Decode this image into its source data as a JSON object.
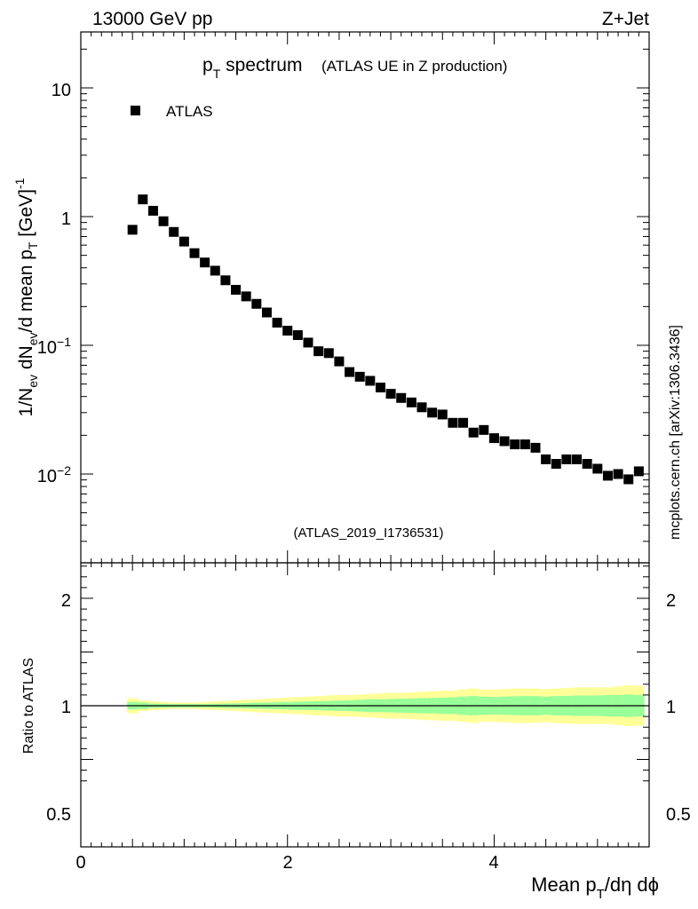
{
  "header": {
    "energy_label": "13000 GeV pp",
    "process_label": "Z+Jet"
  },
  "side_label": "mcplots.cern.ch [arXiv:1306.3436]",
  "analysis_label": "(ATLAS_2019_I1736531)",
  "colors": {
    "data_marker": "#000000",
    "band_outer": "#ffff99",
    "band_inner": "#99ff99",
    "analysis_label": "#999999",
    "frame": "#000000"
  },
  "chart_data": [
    {
      "type": "scatter",
      "title": {
        "main": "p",
        "sub": "T",
        "rest": " spectrum",
        "note": "(ATLAS UE in Z production)"
      },
      "ylabel": "1/N_ev dN_ev/d mean p_T [GeV]^-1",
      "yscale": "log",
      "ylim": [
        0.0025,
        30
      ],
      "xlim": [
        0,
        5.5
      ],
      "ytick_labels": [
        "10",
        "1",
        "10^-1",
        "10^-2"
      ],
      "legend": {
        "position": "top-left",
        "entries": [
          "ATLAS"
        ]
      },
      "series": [
        {
          "name": "ATLAS",
          "marker": "square",
          "x": [
            0.5,
            0.6,
            0.7,
            0.8,
            0.9,
            1.0,
            1.1,
            1.2,
            1.3,
            1.4,
            1.5,
            1.6,
            1.7,
            1.8,
            1.9,
            2.0,
            2.1,
            2.2,
            2.3,
            2.4,
            2.5,
            2.6,
            2.7,
            2.8,
            2.9,
            3.0,
            3.1,
            3.2,
            3.3,
            3.4,
            3.5,
            3.6,
            3.7,
            3.8,
            3.9,
            4.0,
            4.1,
            4.2,
            4.3,
            4.4,
            4.5,
            4.6,
            4.7,
            4.8,
            4.9,
            5.0,
            5.1,
            5.2,
            5.3,
            5.4
          ],
          "y": [
            0.79,
            1.36,
            1.11,
            0.92,
            0.76,
            0.64,
            0.52,
            0.44,
            0.38,
            0.32,
            0.27,
            0.24,
            0.21,
            0.18,
            0.15,
            0.13,
            0.12,
            0.105,
            0.09,
            0.087,
            0.075,
            0.062,
            0.057,
            0.053,
            0.047,
            0.042,
            0.039,
            0.036,
            0.033,
            0.03,
            0.029,
            0.025,
            0.025,
            0.021,
            0.022,
            0.019,
            0.018,
            0.017,
            0.017,
            0.016,
            0.013,
            0.012,
            0.013,
            0.013,
            0.012,
            0.011,
            0.0097,
            0.01,
            0.0091,
            0.0105
          ]
        }
      ]
    },
    {
      "type": "area",
      "ylabel": "Ratio to ATLAS",
      "xlabel": "Mean p_T/dη dφ",
      "ylim": [
        0.3,
        2.3
      ],
      "xlim": [
        0,
        5.5
      ],
      "x_tick_labels": [
        "0",
        "2",
        "4"
      ],
      "y_tick_labels": [
        "2",
        "1",
        "0.5"
      ],
      "reference_line": 1,
      "bins": [
        0.45,
        0.55,
        0.65,
        0.75,
        0.85,
        0.95,
        1.05,
        1.15,
        1.25,
        1.35,
        1.45,
        1.55,
        1.65,
        1.75,
        1.85,
        1.95,
        2.05,
        2.15,
        2.25,
        2.35,
        2.45,
        2.55,
        2.65,
        2.75,
        2.85,
        2.95,
        3.05,
        3.15,
        3.25,
        3.35,
        3.45,
        3.55,
        3.65,
        3.75,
        3.85,
        3.95,
        4.05,
        4.15,
        4.25,
        4.35,
        4.45,
        4.55,
        4.65,
        4.75,
        4.85,
        4.95,
        5.05,
        5.15,
        5.25,
        5.35,
        5.45
      ],
      "outer_band": [
        0.07,
        0.05,
        0.04,
        0.035,
        0.03,
        0.03,
        0.03,
        0.035,
        0.04,
        0.045,
        0.05,
        0.055,
        0.06,
        0.065,
        0.07,
        0.075,
        0.08,
        0.085,
        0.09,
        0.095,
        0.1,
        0.1,
        0.105,
        0.11,
        0.115,
        0.12,
        0.12,
        0.125,
        0.13,
        0.135,
        0.14,
        0.14,
        0.15,
        0.16,
        0.15,
        0.15,
        0.155,
        0.16,
        0.16,
        0.16,
        0.155,
        0.16,
        0.165,
        0.17,
        0.17,
        0.17,
        0.17,
        0.18,
        0.19,
        0.185
      ],
      "inner_band": [
        0.035,
        0.03,
        0.02,
        0.018,
        0.015,
        0.015,
        0.015,
        0.015,
        0.018,
        0.02,
        0.022,
        0.025,
        0.028,
        0.03,
        0.032,
        0.035,
        0.038,
        0.04,
        0.042,
        0.045,
        0.048,
        0.05,
        0.055,
        0.06,
        0.06,
        0.062,
        0.065,
        0.068,
        0.07,
        0.072,
        0.075,
        0.078,
        0.085,
        0.09,
        0.085,
        0.082,
        0.085,
        0.088,
        0.09,
        0.09,
        0.085,
        0.09,
        0.092,
        0.095,
        0.095,
        0.095,
        0.1,
        0.1,
        0.105,
        0.1
      ]
    }
  ]
}
